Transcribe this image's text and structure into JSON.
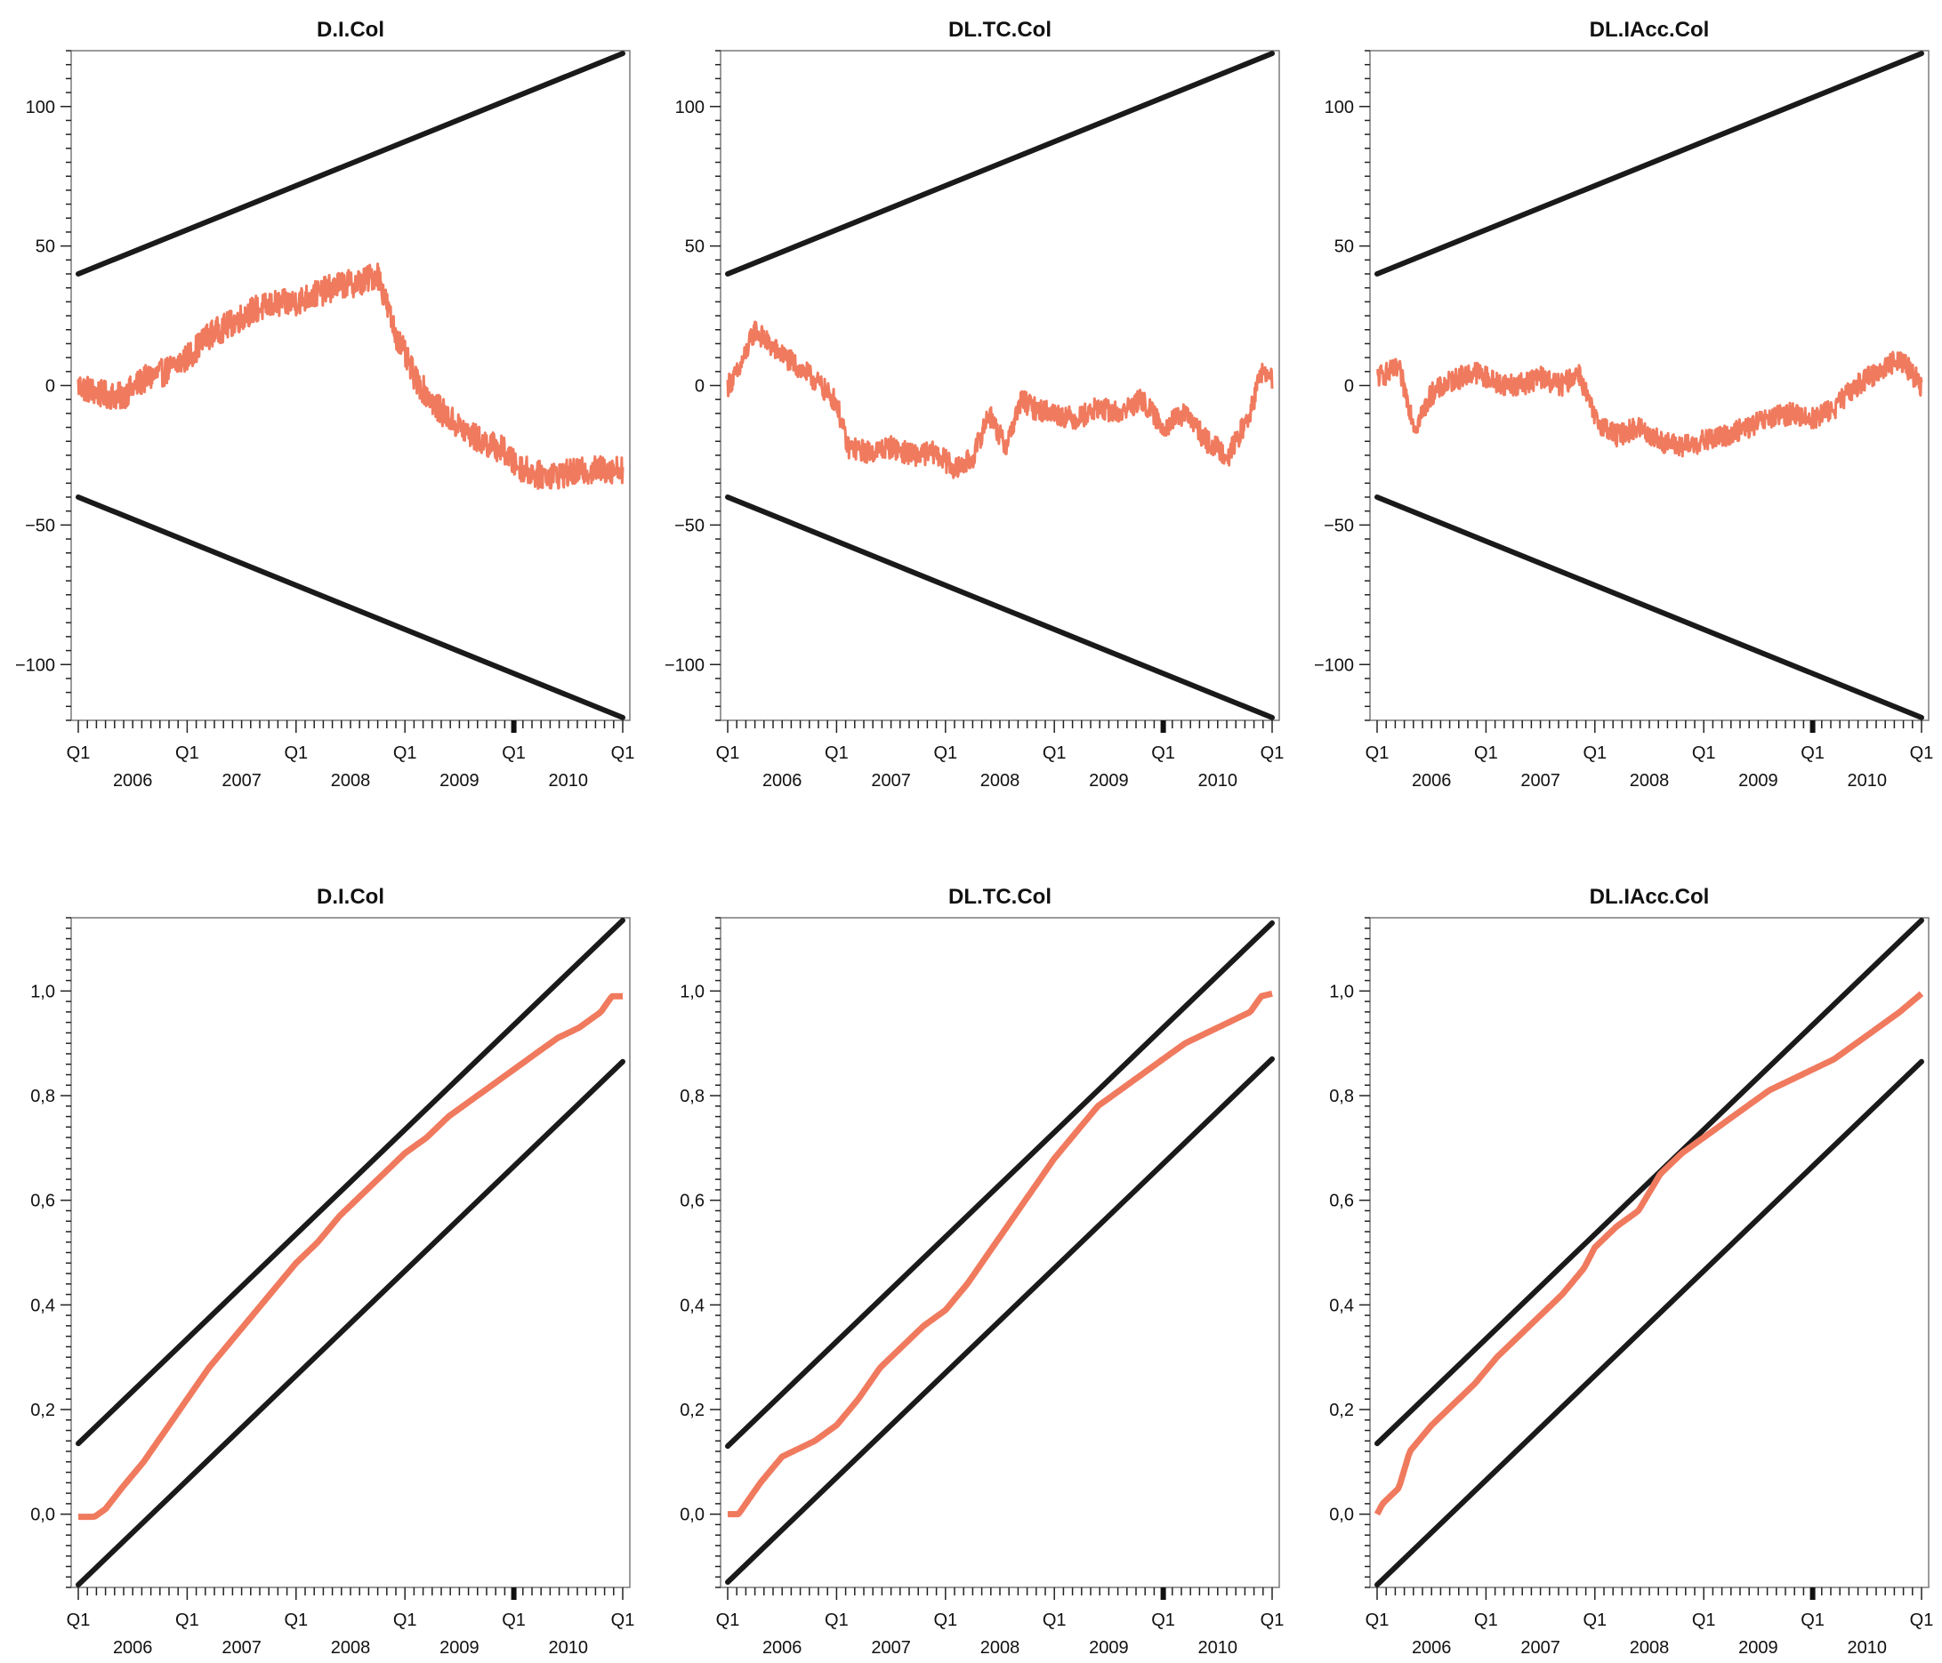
{
  "colors": {
    "bound_line": "#1a1a1a",
    "statistic_line": "#f07a5e",
    "frame": "#7a7a7a",
    "text": "#111111"
  },
  "chart_data": [
    {
      "type": "line",
      "panel": "top-left",
      "title": "D.I.Col",
      "xlabel": "",
      "ylabel": "",
      "x_range": [
        2006.0,
        2011.0
      ],
      "ylim": [
        -120,
        120
      ],
      "y_ticks": [
        100,
        50,
        0,
        -50,
        -100
      ],
      "y_tick_labels": [
        "100",
        "50",
        "0",
        "−50",
        "−100"
      ],
      "x_tick_labels": [
        "Q1",
        "Q1",
        "Q1",
        "Q1",
        "Q1",
        "Q1"
      ],
      "x_year_labels": [
        "2006",
        "2007",
        "2008",
        "2009",
        "2010"
      ],
      "series": [
        {
          "role": "upper-bound",
          "x": [
            2006.0,
            2011.0
          ],
          "y": [
            40,
            119
          ]
        },
        {
          "role": "lower-bound",
          "x": [
            2006.0,
            2011.0
          ],
          "y": [
            -40,
            -119
          ]
        },
        {
          "role": "statistic",
          "noise": 5,
          "x": [
            2006.0,
            2006.2,
            2006.4,
            2006.6,
            2006.8,
            2007.0,
            2007.2,
            2007.4,
            2007.6,
            2007.8,
            2008.0,
            2008.2,
            2008.4,
            2008.6,
            2008.75,
            2008.9,
            2009.1,
            2009.3,
            2009.5,
            2009.7,
            2009.9,
            2010.0,
            2010.2,
            2010.4,
            2010.6,
            2010.8,
            2011.0
          ],
          "y": [
            0,
            -3,
            -4,
            2,
            5,
            10,
            18,
            22,
            27,
            29,
            30,
            33,
            36,
            37,
            40,
            20,
            2,
            -8,
            -15,
            -20,
            -23,
            -28,
            -32,
            -32,
            -31,
            -30,
            -30
          ]
        }
      ]
    },
    {
      "type": "line",
      "panel": "top-middle",
      "title": "DL.TC.Col",
      "xlabel": "",
      "ylabel": "",
      "x_range": [
        2006.0,
        2011.0
      ],
      "ylim": [
        -120,
        120
      ],
      "y_ticks": [
        100,
        50,
        0,
        -50,
        -100
      ],
      "y_tick_labels": [
        "100",
        "50",
        "0",
        "−50",
        "−100"
      ],
      "x_tick_labels": [
        "Q1",
        "Q1",
        "Q1",
        "Q1",
        "Q1",
        "Q1"
      ],
      "x_year_labels": [
        "2006",
        "2007",
        "2008",
        "2009",
        "2010"
      ],
      "series": [
        {
          "role": "upper-bound",
          "x": [
            2006.0,
            2011.0
          ],
          "y": [
            40,
            119
          ]
        },
        {
          "role": "lower-bound",
          "x": [
            2006.0,
            2011.0
          ],
          "y": [
            -40,
            -119
          ]
        },
        {
          "role": "statistic",
          "noise": 4,
          "x": [
            2006.0,
            2006.1,
            2006.25,
            2006.4,
            2006.6,
            2006.8,
            2007.0,
            2007.1,
            2007.3,
            2007.5,
            2007.7,
            2007.9,
            2008.1,
            2008.25,
            2008.4,
            2008.55,
            2008.7,
            2008.8,
            2009.0,
            2009.2,
            2009.4,
            2009.6,
            2009.8,
            2010.0,
            2010.2,
            2010.4,
            2010.6,
            2010.8,
            2010.9,
            2011.0
          ],
          "y": [
            0,
            5,
            20,
            14,
            8,
            2,
            -6,
            -22,
            -24,
            -22,
            -25,
            -24,
            -30,
            -26,
            -10,
            -22,
            -5,
            -8,
            -10,
            -12,
            -8,
            -10,
            -5,
            -15,
            -10,
            -20,
            -25,
            -10,
            5,
            2
          ]
        }
      ]
    },
    {
      "type": "line",
      "panel": "top-right",
      "title": "DL.IAcc.Col",
      "xlabel": "",
      "ylabel": "",
      "x_range": [
        2006.0,
        2011.0
      ],
      "ylim": [
        -120,
        120
      ],
      "y_ticks": [
        100,
        50,
        0,
        -50,
        -100
      ],
      "y_tick_labels": [
        "100",
        "50",
        "0",
        "−50",
        "−100"
      ],
      "x_tick_labels": [
        "Q1",
        "Q1",
        "Q1",
        "Q1",
        "Q1",
        "Q1"
      ],
      "x_year_labels": [
        "2006",
        "2007",
        "2008",
        "2009",
        "2010"
      ],
      "series": [
        {
          "role": "upper-bound",
          "x": [
            2006.0,
            2011.0
          ],
          "y": [
            40,
            119
          ]
        },
        {
          "role": "lower-bound",
          "x": [
            2006.0,
            2011.0
          ],
          "y": [
            -40,
            -119
          ]
        },
        {
          "role": "statistic",
          "noise": 4,
          "x": [
            2006.0,
            2006.2,
            2006.35,
            2006.5,
            2006.7,
            2006.9,
            2007.1,
            2007.3,
            2007.5,
            2007.7,
            2007.85,
            2008.0,
            2008.2,
            2008.4,
            2008.6,
            2008.8,
            2009.0,
            2009.2,
            2009.4,
            2009.6,
            2009.8,
            2010.0,
            2010.2,
            2010.4,
            2010.6,
            2010.8,
            2011.0
          ],
          "y": [
            3,
            6,
            -15,
            -3,
            2,
            5,
            1,
            0,
            3,
            0,
            5,
            -12,
            -18,
            -15,
            -20,
            -22,
            -20,
            -18,
            -15,
            -12,
            -10,
            -12,
            -8,
            0,
            5,
            10,
            0
          ]
        }
      ]
    },
    {
      "type": "line",
      "panel": "bottom-left",
      "title": "D.I.Col",
      "xlabel": "",
      "ylabel": "",
      "x_range": [
        2006.0,
        2011.0
      ],
      "ylim": [
        -0.14,
        1.14
      ],
      "y_ticks": [
        1.0,
        0.8,
        0.6,
        0.4,
        0.2,
        0.0
      ],
      "y_tick_labels": [
        "1,0",
        "0,8",
        "0,6",
        "0,4",
        "0,2",
        "0,0"
      ],
      "x_tick_labels": [
        "Q1",
        "Q1",
        "Q1",
        "Q1",
        "Q1",
        "Q1"
      ],
      "x_year_labels": [
        "2006",
        "2007",
        "2008",
        "2009",
        "2010"
      ],
      "series": [
        {
          "role": "upper-bound",
          "x": [
            2006.0,
            2011.0
          ],
          "y": [
            0.135,
            1.135
          ]
        },
        {
          "role": "lower-bound",
          "x": [
            2006.0,
            2011.0
          ],
          "y": [
            -0.135,
            0.865
          ]
        },
        {
          "role": "statistic",
          "noise": 0,
          "x": [
            2006.0,
            2006.15,
            2006.25,
            2006.4,
            2006.6,
            2006.8,
            2007.0,
            2007.2,
            2007.4,
            2007.6,
            2007.8,
            2008.0,
            2008.2,
            2008.4,
            2008.6,
            2008.8,
            2009.0,
            2009.2,
            2009.4,
            2009.6,
            2009.8,
            2010.0,
            2010.2,
            2010.4,
            2010.6,
            2010.8,
            2010.9,
            2011.0
          ],
          "y": [
            -0.005,
            -0.005,
            0.01,
            0.05,
            0.1,
            0.16,
            0.22,
            0.28,
            0.33,
            0.38,
            0.43,
            0.48,
            0.52,
            0.57,
            0.61,
            0.65,
            0.69,
            0.72,
            0.76,
            0.79,
            0.82,
            0.85,
            0.88,
            0.91,
            0.93,
            0.96,
            0.99,
            0.99
          ]
        }
      ]
    },
    {
      "type": "line",
      "panel": "bottom-middle",
      "title": "DL.TC.Col",
      "xlabel": "",
      "ylabel": "",
      "x_range": [
        2006.0,
        2011.0
      ],
      "ylim": [
        -0.14,
        1.14
      ],
      "y_ticks": [
        1.0,
        0.8,
        0.6,
        0.4,
        0.2,
        0.0
      ],
      "y_tick_labels": [
        "1,0",
        "0,8",
        "0,6",
        "0,4",
        "0,2",
        "0,0"
      ],
      "x_tick_labels": [
        "Q1",
        "Q1",
        "Q1",
        "Q1",
        "Q1",
        "Q1"
      ],
      "x_year_labels": [
        "2006",
        "2007",
        "2008",
        "2009",
        "2010"
      ],
      "series": [
        {
          "role": "upper-bound",
          "x": [
            2006.0,
            2011.0
          ],
          "y": [
            0.13,
            1.13
          ]
        },
        {
          "role": "lower-bound",
          "x": [
            2006.0,
            2011.0
          ],
          "y": [
            -0.13,
            0.87
          ]
        },
        {
          "role": "statistic",
          "noise": 0,
          "x": [
            2006.0,
            2006.1,
            2006.3,
            2006.5,
            2006.8,
            2007.0,
            2007.2,
            2007.4,
            2007.6,
            2007.8,
            2008.0,
            2008.2,
            2008.4,
            2008.6,
            2008.8,
            2009.0,
            2009.2,
            2009.4,
            2009.6,
            2009.8,
            2010.0,
            2010.2,
            2010.4,
            2010.6,
            2010.8,
            2010.9,
            2011.0
          ],
          "y": [
            0.0,
            0.0,
            0.06,
            0.11,
            0.14,
            0.17,
            0.22,
            0.28,
            0.32,
            0.36,
            0.39,
            0.44,
            0.5,
            0.56,
            0.62,
            0.68,
            0.73,
            0.78,
            0.81,
            0.84,
            0.87,
            0.9,
            0.92,
            0.94,
            0.96,
            0.99,
            0.995
          ]
        }
      ]
    },
    {
      "type": "line",
      "panel": "bottom-right",
      "title": "DL.IAcc.Col",
      "xlabel": "",
      "ylabel": "",
      "x_range": [
        2006.0,
        2011.0
      ],
      "ylim": [
        -0.14,
        1.14
      ],
      "y_ticks": [
        1.0,
        0.8,
        0.6,
        0.4,
        0.2,
        0.0
      ],
      "y_tick_labels": [
        "1,0",
        "0,8",
        "0,6",
        "0,4",
        "0,2",
        "0,0"
      ],
      "x_tick_labels": [
        "Q1",
        "Q1",
        "Q1",
        "Q1",
        "Q1",
        "Q1"
      ],
      "x_year_labels": [
        "2006",
        "2007",
        "2008",
        "2009",
        "2010"
      ],
      "series": [
        {
          "role": "upper-bound",
          "x": [
            2006.0,
            2011.0
          ],
          "y": [
            0.135,
            1.135
          ]
        },
        {
          "role": "lower-bound",
          "x": [
            2006.0,
            2011.0
          ],
          "y": [
            -0.135,
            0.865
          ]
        },
        {
          "role": "statistic",
          "noise": 0,
          "x": [
            2006.0,
            2006.05,
            2006.2,
            2006.3,
            2006.5,
            2006.7,
            2006.9,
            2007.1,
            2007.3,
            2007.5,
            2007.7,
            2007.9,
            2008.0,
            2008.2,
            2008.4,
            2008.6,
            2008.8,
            2009.0,
            2009.2,
            2009.4,
            2009.6,
            2009.8,
            2010.0,
            2010.2,
            2010.4,
            2010.6,
            2010.8,
            2011.0
          ],
          "y": [
            0.0,
            0.02,
            0.05,
            0.12,
            0.17,
            0.21,
            0.25,
            0.3,
            0.34,
            0.38,
            0.42,
            0.47,
            0.51,
            0.55,
            0.58,
            0.65,
            0.69,
            0.72,
            0.75,
            0.78,
            0.81,
            0.83,
            0.85,
            0.87,
            0.9,
            0.93,
            0.96,
            0.995
          ]
        }
      ]
    }
  ]
}
